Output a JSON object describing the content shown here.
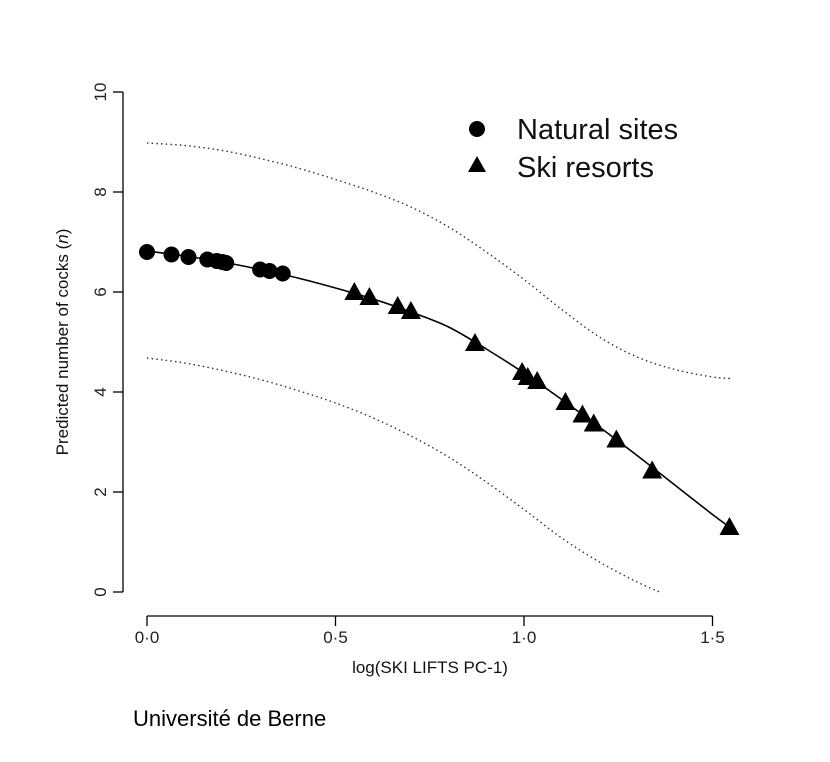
{
  "chart_data": {
    "type": "scatter",
    "title": "",
    "xlabel": "log(SKI LIFTS PC-1)",
    "ylabel": "Predicted number of cocks (n)",
    "xlim": [
      -0.04,
      1.55
    ],
    "ylim": [
      0,
      10
    ],
    "x_ticks": [
      "0·0",
      "0·5",
      "1·0",
      "1·5"
    ],
    "x_tick_values": [
      0,
      0.5,
      1.0,
      1.5
    ],
    "y_ticks": [
      "0",
      "2",
      "4",
      "6",
      "8",
      "10"
    ],
    "y_tick_values": [
      0,
      2,
      4,
      6,
      8,
      10
    ],
    "grid": false,
    "legend_position": "top-right",
    "series": [
      {
        "name": "Natural sites",
        "marker": "circle",
        "x": [
          0.0,
          0.065,
          0.11,
          0.16,
          0.185,
          0.2,
          0.21,
          0.3,
          0.325,
          0.36
        ],
        "y": [
          6.8,
          6.75,
          6.7,
          6.65,
          6.62,
          6.6,
          6.58,
          6.45,
          6.42,
          6.37
        ]
      },
      {
        "name": "Ski resorts",
        "marker": "triangle",
        "x": [
          0.55,
          0.59,
          0.665,
          0.7,
          0.87,
          0.995,
          1.01,
          1.035,
          1.11,
          1.155,
          1.185,
          1.245,
          1.34,
          1.545
        ],
        "y": [
          6.0,
          5.9,
          5.72,
          5.62,
          4.98,
          4.4,
          4.3,
          4.22,
          3.8,
          3.55,
          3.37,
          3.05,
          2.43,
          1.3
        ]
      }
    ],
    "fitted_curve": {
      "x": [
        0.0,
        0.1,
        0.2,
        0.3,
        0.4,
        0.5,
        0.6,
        0.7,
        0.8,
        0.9,
        1.0,
        1.1,
        1.2,
        1.3,
        1.4,
        1.5,
        1.545
      ],
      "y": [
        6.82,
        6.72,
        6.6,
        6.45,
        6.28,
        6.08,
        5.86,
        5.6,
        5.3,
        4.86,
        4.38,
        3.85,
        3.3,
        2.73,
        2.14,
        1.55,
        1.3
      ]
    },
    "confidence_upper": {
      "x": [
        0.0,
        0.1,
        0.2,
        0.3,
        0.4,
        0.5,
        0.6,
        0.7,
        0.8,
        0.9,
        1.0,
        1.1,
        1.2,
        1.3,
        1.4,
        1.5,
        1.55
      ],
      "y": [
        8.98,
        8.93,
        8.83,
        8.67,
        8.48,
        8.25,
        8.0,
        7.7,
        7.3,
        6.8,
        6.25,
        5.65,
        5.1,
        4.7,
        4.45,
        4.3,
        4.27
      ]
    },
    "confidence_lower": {
      "x": [
        0.0,
        0.1,
        0.2,
        0.3,
        0.4,
        0.5,
        0.6,
        0.7,
        0.8,
        0.9,
        1.0,
        1.1,
        1.2,
        1.3,
        1.36
      ],
      "y": [
        4.68,
        4.58,
        4.43,
        4.25,
        4.03,
        3.78,
        3.48,
        3.12,
        2.7,
        2.2,
        1.65,
        1.08,
        0.6,
        0.2,
        0.0
      ]
    }
  },
  "credit": "Université de Berne"
}
